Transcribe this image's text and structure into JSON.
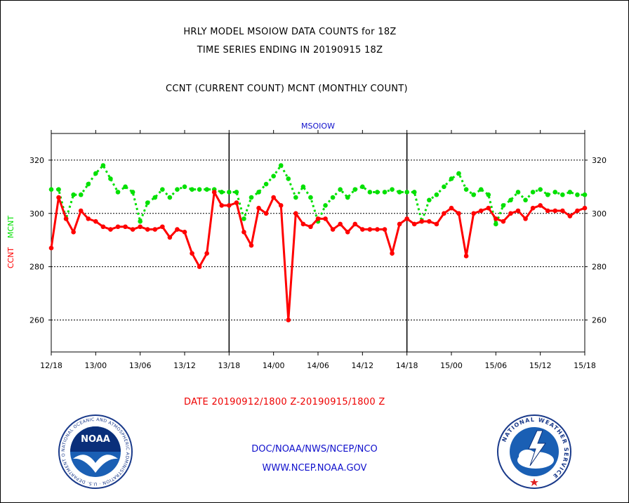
{
  "header": {
    "title_line1": "HRLY MODEL MSOIOW DATA COUNTS for 18Z",
    "title_line2": "TIME SERIES ENDING IN 20190915 18Z",
    "subtitle": "CCNT (CURRENT COUNT) MCNT (MONTHLY COUNT)"
  },
  "footer": {
    "date_range": "DATE 20190912/1800 Z-20190915/1800 Z",
    "org_line": "DOC/NOAA/NWS/NCEP/NCO",
    "url": "WWW.NCEP.NOAA.GOV"
  },
  "logos": {
    "noaa_text": "NOAA",
    "noaa_ring": "NATIONAL OCEANIC AND ATMOSPHERIC ADMINISTRATION · U.S. DEPARTMENT OF COMMERCE",
    "nws_ring": "NATIONAL WEATHER SERVICE"
  },
  "chart_data": {
    "type": "line",
    "title": "MSOIOW",
    "ylabel_ccnt": "CCNT",
    "ylabel_mcnt": "MCNT",
    "xlabel": "DATE 20190912/1800 Z-20190915/1800 Z",
    "ylim": [
      248,
      330
    ],
    "yticks": [
      260,
      280,
      300,
      320
    ],
    "ytick_labels": [
      "260",
      "280",
      "300",
      "320"
    ],
    "xlim": [
      0,
      72
    ],
    "xticks": [
      0,
      6,
      12,
      18,
      24,
      30,
      36,
      42,
      48,
      54,
      60,
      66,
      72
    ],
    "xtick_labels": [
      "12/18",
      "13/00",
      "13/06",
      "13/12",
      "13/18",
      "14/00",
      "14/06",
      "14/12",
      "14/18",
      "15/00",
      "15/06",
      "15/12",
      "15/18"
    ],
    "day_dividers": [
      24,
      48
    ],
    "grid": "horizontal dotted",
    "colors": {
      "ccnt": "#ff0000",
      "mcnt": "#00e000",
      "title": "#1010cc",
      "axis": "#000000"
    },
    "series": [
      {
        "name": "CCNT",
        "values": [
          287,
          306,
          298,
          293,
          301,
          298,
          297,
          295,
          294,
          295,
          295,
          294,
          295,
          294,
          294,
          295,
          291,
          294,
          293,
          285,
          280,
          285,
          308,
          303,
          303,
          304,
          293,
          288,
          302,
          300,
          306,
          303,
          260,
          300,
          296,
          295,
          298,
          298,
          294,
          296,
          293,
          296,
          294,
          294,
          294,
          294,
          285,
          296,
          298,
          296,
          297,
          297,
          296,
          300,
          302,
          300,
          284,
          300,
          301,
          302,
          298,
          297,
          300,
          301,
          298,
          302,
          303,
          301,
          301,
          301,
          299,
          301,
          302
        ]
      },
      {
        "name": "MCNT",
        "values": [
          309,
          309,
          298,
          307,
          307,
          311,
          315,
          318,
          313,
          308,
          310,
          308,
          297,
          304,
          306,
          309,
          306,
          309,
          310,
          309,
          309,
          309,
          309,
          308,
          308,
          308,
          298,
          306,
          308,
          311,
          314,
          318,
          313,
          306,
          310,
          306,
          297,
          303,
          306,
          309,
          306,
          309,
          310,
          308,
          308,
          308,
          309,
          308,
          308,
          308,
          297,
          305,
          307,
          310,
          313,
          315,
          309,
          307,
          309,
          307,
          296,
          303,
          305,
          308,
          305,
          308,
          309,
          307,
          308,
          307,
          308,
          307,
          307
        ]
      }
    ]
  }
}
